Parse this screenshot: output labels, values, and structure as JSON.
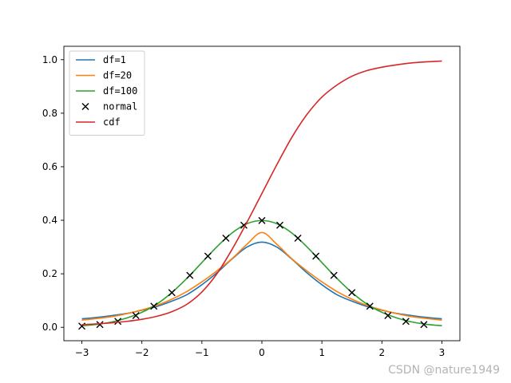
{
  "chart_data": {
    "type": "line",
    "title": "",
    "xlabel": "",
    "ylabel": "",
    "xlim": [
      -3.3,
      3.3
    ],
    "ylim": [
      -0.05,
      1.05
    ],
    "grid": false,
    "legend_position": "top-left",
    "xticks": [
      {
        "value": -3,
        "label": "−3"
      },
      {
        "value": -2,
        "label": "−2"
      },
      {
        "value": -1,
        "label": "−1"
      },
      {
        "value": 0,
        "label": "0"
      },
      {
        "value": 1,
        "label": "1"
      },
      {
        "value": 2,
        "label": "2"
      },
      {
        "value": 3,
        "label": "3"
      }
    ],
    "yticks": [
      {
        "value": 0.0,
        "label": "0.0"
      },
      {
        "value": 0.2,
        "label": "0.2"
      },
      {
        "value": 0.4,
        "label": "0.4"
      },
      {
        "value": 0.6,
        "label": "0.6"
      },
      {
        "value": 0.8,
        "label": "0.8"
      },
      {
        "value": 1.0,
        "label": "1.0"
      }
    ],
    "series": [
      {
        "name": "df=1",
        "color": "#1f77b4",
        "style": "line",
        "x": [
          -3.0,
          -2.75,
          -2.5,
          -2.25,
          -2.0,
          -1.75,
          -1.5,
          -1.25,
          -1.0,
          -0.75,
          -0.5,
          -0.25,
          0.0,
          0.25,
          0.5,
          0.75,
          1.0,
          1.25,
          1.5,
          1.75,
          2.0,
          2.25,
          2.5,
          2.75,
          3.0
        ],
        "y": [
          0.0318,
          0.0369,
          0.0439,
          0.0521,
          0.0637,
          0.078,
          0.0979,
          0.122,
          0.1592,
          0.2037,
          0.2546,
          0.2996,
          0.3183,
          0.2996,
          0.2546,
          0.2037,
          0.1592,
          0.122,
          0.0979,
          0.078,
          0.0637,
          0.0521,
          0.0439,
          0.0369,
          0.0318
        ]
      },
      {
        "name": "df=20",
        "color": "#ff7f0e",
        "style": "line",
        "x": [
          -3.0,
          -2.75,
          -2.5,
          -2.25,
          -2.0,
          -1.75,
          -1.5,
          -1.25,
          -1.0,
          -0.75,
          -0.5,
          -0.25,
          0.0,
          0.25,
          0.5,
          0.75,
          1.0,
          1.25,
          1.5,
          1.75,
          2.0,
          2.25,
          2.5,
          2.75,
          3.0
        ],
        "y": [
          0.027,
          0.033,
          0.04,
          0.051,
          0.065,
          0.082,
          0.105,
          0.134,
          0.17,
          0.211,
          0.256,
          0.31,
          0.354,
          0.31,
          0.256,
          0.211,
          0.17,
          0.134,
          0.105,
          0.082,
          0.065,
          0.051,
          0.04,
          0.033,
          0.027
        ]
      },
      {
        "name": "df=100",
        "color": "#2ca02c",
        "style": "line",
        "x": [
          -3.0,
          -2.75,
          -2.5,
          -2.25,
          -2.0,
          -1.75,
          -1.5,
          -1.25,
          -1.0,
          -0.75,
          -0.5,
          -0.25,
          0.0,
          0.25,
          0.5,
          0.75,
          1.0,
          1.25,
          1.5,
          1.75,
          2.0,
          2.25,
          2.5,
          2.75,
          3.0
        ],
        "y": [
          0.006,
          0.011,
          0.02,
          0.035,
          0.056,
          0.087,
          0.13,
          0.183,
          0.242,
          0.301,
          0.352,
          0.387,
          0.399,
          0.387,
          0.352,
          0.301,
          0.242,
          0.183,
          0.13,
          0.087,
          0.056,
          0.035,
          0.02,
          0.011,
          0.006
        ]
      },
      {
        "name": "normal",
        "color": "#000000",
        "style": "markers",
        "marker": "x",
        "x": [
          -3.0,
          -2.7,
          -2.4,
          -2.1,
          -1.8,
          -1.5,
          -1.2,
          -0.9,
          -0.6,
          -0.3,
          0.0,
          0.3,
          0.6,
          0.9,
          1.2,
          1.5,
          1.8,
          2.1,
          2.4,
          2.7
        ],
        "y": [
          0.0044,
          0.0104,
          0.0224,
          0.044,
          0.079,
          0.1295,
          0.1942,
          0.2661,
          0.3332,
          0.3814,
          0.3989,
          0.3814,
          0.3332,
          0.2661,
          0.1942,
          0.1295,
          0.079,
          0.044,
          0.0224,
          0.0104
        ]
      },
      {
        "name": "cdf",
        "color": "#d62728",
        "style": "line",
        "x": [
          -3.0,
          -2.75,
          -2.5,
          -2.25,
          -2.0,
          -1.75,
          -1.5,
          -1.25,
          -1.0,
          -0.75,
          -0.5,
          -0.25,
          0.0,
          0.25,
          0.5,
          0.75,
          1.0,
          1.25,
          1.5,
          1.75,
          2.0,
          2.25,
          2.5,
          2.75,
          3.0
        ],
        "y": [
          0.0102,
          0.013,
          0.017,
          0.0223,
          0.03,
          0.0412,
          0.0585,
          0.086,
          0.132,
          0.2,
          0.29,
          0.392,
          0.5,
          0.608,
          0.71,
          0.795,
          0.86,
          0.905,
          0.938,
          0.959,
          0.972,
          0.981,
          0.988,
          0.992,
          0.995
        ]
      }
    ]
  },
  "watermark": "CSDN @nature1949"
}
